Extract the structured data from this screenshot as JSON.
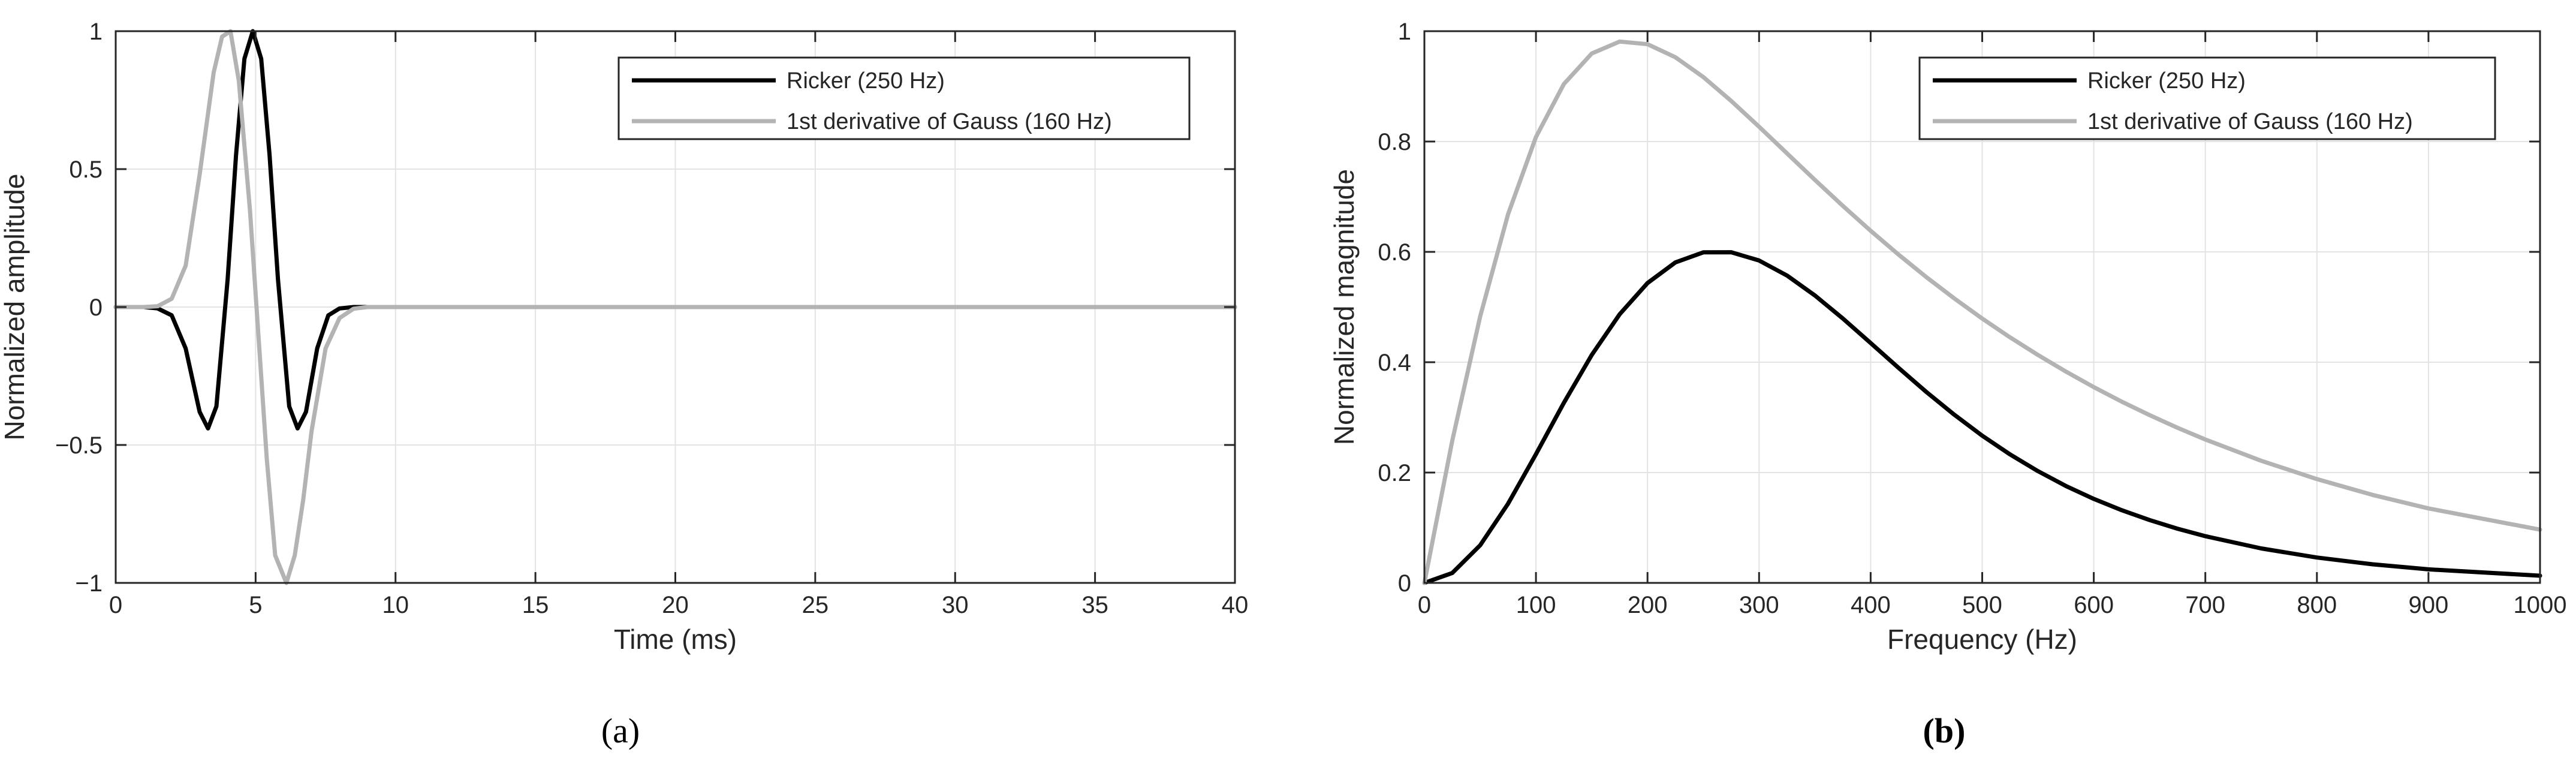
{
  "chart_data": [
    {
      "type": "line",
      "panel": "a",
      "caption": "(a)",
      "caption_bold": false,
      "title": "",
      "xlabel": "Time (ms)",
      "ylabel": "Normalized amplitude",
      "xlim": [
        0,
        40
      ],
      "ylim": [
        -1,
        1
      ],
      "xticks": [
        0,
        5,
        10,
        15,
        20,
        25,
        30,
        35,
        40
      ],
      "xtick_labels": [
        "0",
        "5",
        "10",
        "15",
        "20",
        "25",
        "30",
        "35",
        "40"
      ],
      "yticks": [
        -1,
        -0.5,
        0,
        0.5,
        1
      ],
      "ytick_labels": [
        "−1",
        "−0.5",
        "0",
        "0.5",
        "1"
      ],
      "grid": true,
      "legend_position": "top-right",
      "series": [
        {
          "name": "Ricker (250 Hz)",
          "color": "#000000",
          "x": [
            0,
            1,
            1.5,
            2,
            2.5,
            3,
            3.3,
            3.6,
            4,
            4.3,
            4.6,
            4.9,
            5.2,
            5.5,
            5.8,
            6.2,
            6.5,
            6.8,
            7.2,
            7.6,
            8,
            8.5,
            9,
            10,
            40
          ],
          "y": [
            0,
            0,
            -0.005,
            -0.03,
            -0.15,
            -0.38,
            -0.44,
            -0.36,
            0.1,
            0.55,
            0.9,
            1.0,
            0.9,
            0.55,
            0.1,
            -0.36,
            -0.44,
            -0.38,
            -0.15,
            -0.03,
            -0.005,
            0,
            0,
            0,
            0
          ]
        },
        {
          "name": "1st derivative of Gauss (160 Hz)",
          "color": "#b3b3b3",
          "x": [
            0,
            1,
            1.5,
            2,
            2.5,
            3,
            3.5,
            3.8,
            4.1,
            4.4,
            4.8,
            5.1,
            5.4,
            5.7,
            6.1,
            6.4,
            6.7,
            7,
            7.5,
            8,
            8.5,
            9,
            10,
            40
          ],
          "y": [
            0,
            0,
            0.003,
            0.03,
            0.15,
            0.48,
            0.85,
            0.98,
            1.0,
            0.82,
            0.35,
            -0.1,
            -0.55,
            -0.9,
            -1.0,
            -0.9,
            -0.7,
            -0.45,
            -0.15,
            -0.04,
            -0.006,
            0,
            0,
            0
          ]
        }
      ]
    },
    {
      "type": "line",
      "panel": "b",
      "caption": "(b)",
      "caption_bold": true,
      "title": "",
      "xlabel": "Frequency (Hz)",
      "ylabel": "Normalized magnitude",
      "xlim": [
        0,
        1000
      ],
      "ylim": [
        0,
        1
      ],
      "xticks": [
        0,
        100,
        200,
        300,
        400,
        500,
        600,
        700,
        800,
        900,
        1000
      ],
      "xtick_labels": [
        "0",
        "100",
        "200",
        "300",
        "400",
        "500",
        "600",
        "700",
        "800",
        "900",
        "1000"
      ],
      "yticks": [
        0,
        0.2,
        0.4,
        0.6,
        0.8,
        1
      ],
      "ytick_labels": [
        "0",
        "0.2",
        "0.4",
        "0.6",
        "0.8",
        "1"
      ],
      "grid": true,
      "legend_position": "top-right",
      "series": [
        {
          "name": "Ricker (250 Hz)",
          "color": "#000000",
          "x": [
            0,
            25,
            50,
            75,
            100,
            125,
            150,
            175,
            200,
            225,
            250,
            275,
            300,
            325,
            350,
            375,
            400,
            425,
            450,
            475,
            500,
            525,
            550,
            575,
            600,
            625,
            650,
            675,
            700,
            750,
            800,
            850,
            900,
            1000
          ],
          "y": [
            0,
            0.0179,
            0.0683,
            0.1436,
            0.2333,
            0.3263,
            0.4131,
            0.4869,
            0.5435,
            0.5809,
            0.5991,
            0.5994,
            0.5844,
            0.5572,
            0.5211,
            0.4794,
            0.4348,
            0.3898,
            0.346,
            0.3048,
            0.2669,
            0.2328,
            0.2025,
            0.1757,
            0.1523,
            0.1318,
            0.1139,
            0.0983,
            0.0847,
            0.0625,
            0.046,
            0.0337,
            0.0246,
            0.013
          ]
        },
        {
          "name": "1st derivative of Gauss (160 Hz)",
          "color": "#b3b3b3",
          "x": [
            0,
            25,
            50,
            75,
            100,
            125,
            150,
            175,
            200,
            225,
            250,
            275,
            300,
            325,
            350,
            375,
            400,
            425,
            450,
            475,
            500,
            525,
            550,
            575,
            600,
            625,
            650,
            675,
            700,
            750,
            800,
            850,
            900,
            1000
          ],
          "y": [
            0,
            0.2577,
            0.4832,
            0.6683,
            0.8082,
            0.9041,
            0.9596,
            0.9812,
            0.9764,
            0.9527,
            0.9168,
            0.8736,
            0.8268,
            0.7786,
            0.7305,
            0.6835,
            0.6383,
            0.5951,
            0.5541,
            0.5155,
            0.4791,
            0.445,
            0.413,
            0.383,
            0.3549,
            0.3286,
            0.3041,
            0.2812,
            0.2599,
            0.2214,
            0.1881,
            0.1595,
            0.135,
            0.0965
          ]
        }
      ]
    }
  ]
}
